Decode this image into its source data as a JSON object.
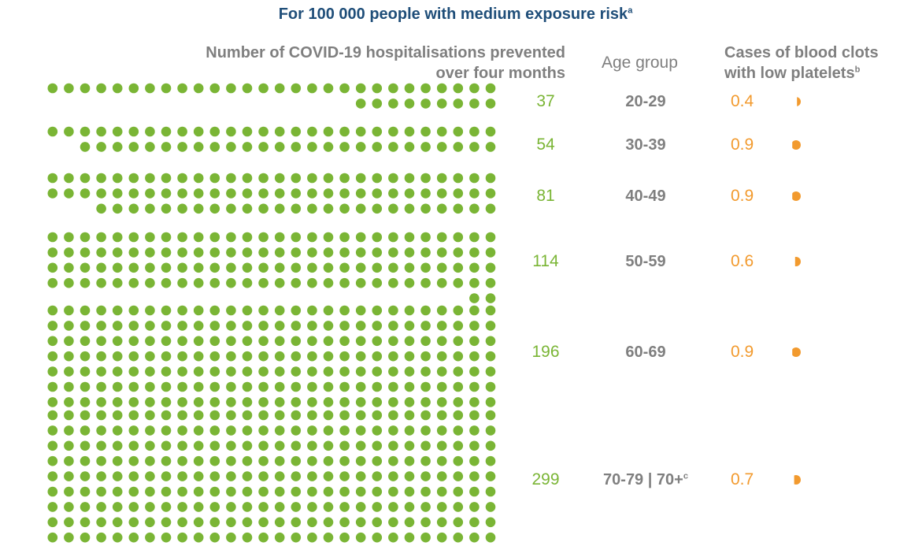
{
  "title": {
    "text": "For 100 000 people with medium exposure risk",
    "sup": "a"
  },
  "headers": {
    "hosp_line1": "Number of COVID-19 hospitalisations prevented",
    "hosp_line2": "over four months",
    "age": "Age group",
    "clots_line1": "Cases of blood clots",
    "clots_line2": "with low platelets",
    "clots_sup": "b"
  },
  "colors": {
    "hospitalisations": "#7ab535",
    "blood_clots": "#f29a2e",
    "title": "#1f4e79",
    "text": "#7f7f7f"
  },
  "chart_data": {
    "type": "dot-matrix",
    "units_per_dot": 1,
    "dots_per_row": 28,
    "age_groups": [
      "20-29",
      "30-39",
      "40-49",
      "50-59",
      "60-69",
      "70-79 | 70+"
    ],
    "series": [
      {
        "name": "Number of COVID-19 hospitalisations prevented over four months",
        "values": [
          37,
          54,
          81,
          114,
          196,
          299
        ]
      },
      {
        "name": "Cases of blood clots with low platelets",
        "values": [
          0.4,
          0.9,
          0.9,
          0.6,
          0.9,
          0.7
        ]
      }
    ],
    "rows": [
      {
        "hosp": "37",
        "age": "20-29",
        "age_sup": "",
        "clots": "0.4"
      },
      {
        "hosp": "54",
        "age": "30-39",
        "age_sup": "",
        "clots": "0.9"
      },
      {
        "hosp": "81",
        "age": "40-49",
        "age_sup": "",
        "clots": "0.9"
      },
      {
        "hosp": "114",
        "age": "50-59",
        "age_sup": "",
        "clots": "0.6"
      },
      {
        "hosp": "196",
        "age": "60-69",
        "age_sup": "",
        "clots": "0.9"
      },
      {
        "hosp": "299",
        "age": "70-79 | 70+",
        "age_sup": "c",
        "clots": "0.7"
      }
    ]
  }
}
